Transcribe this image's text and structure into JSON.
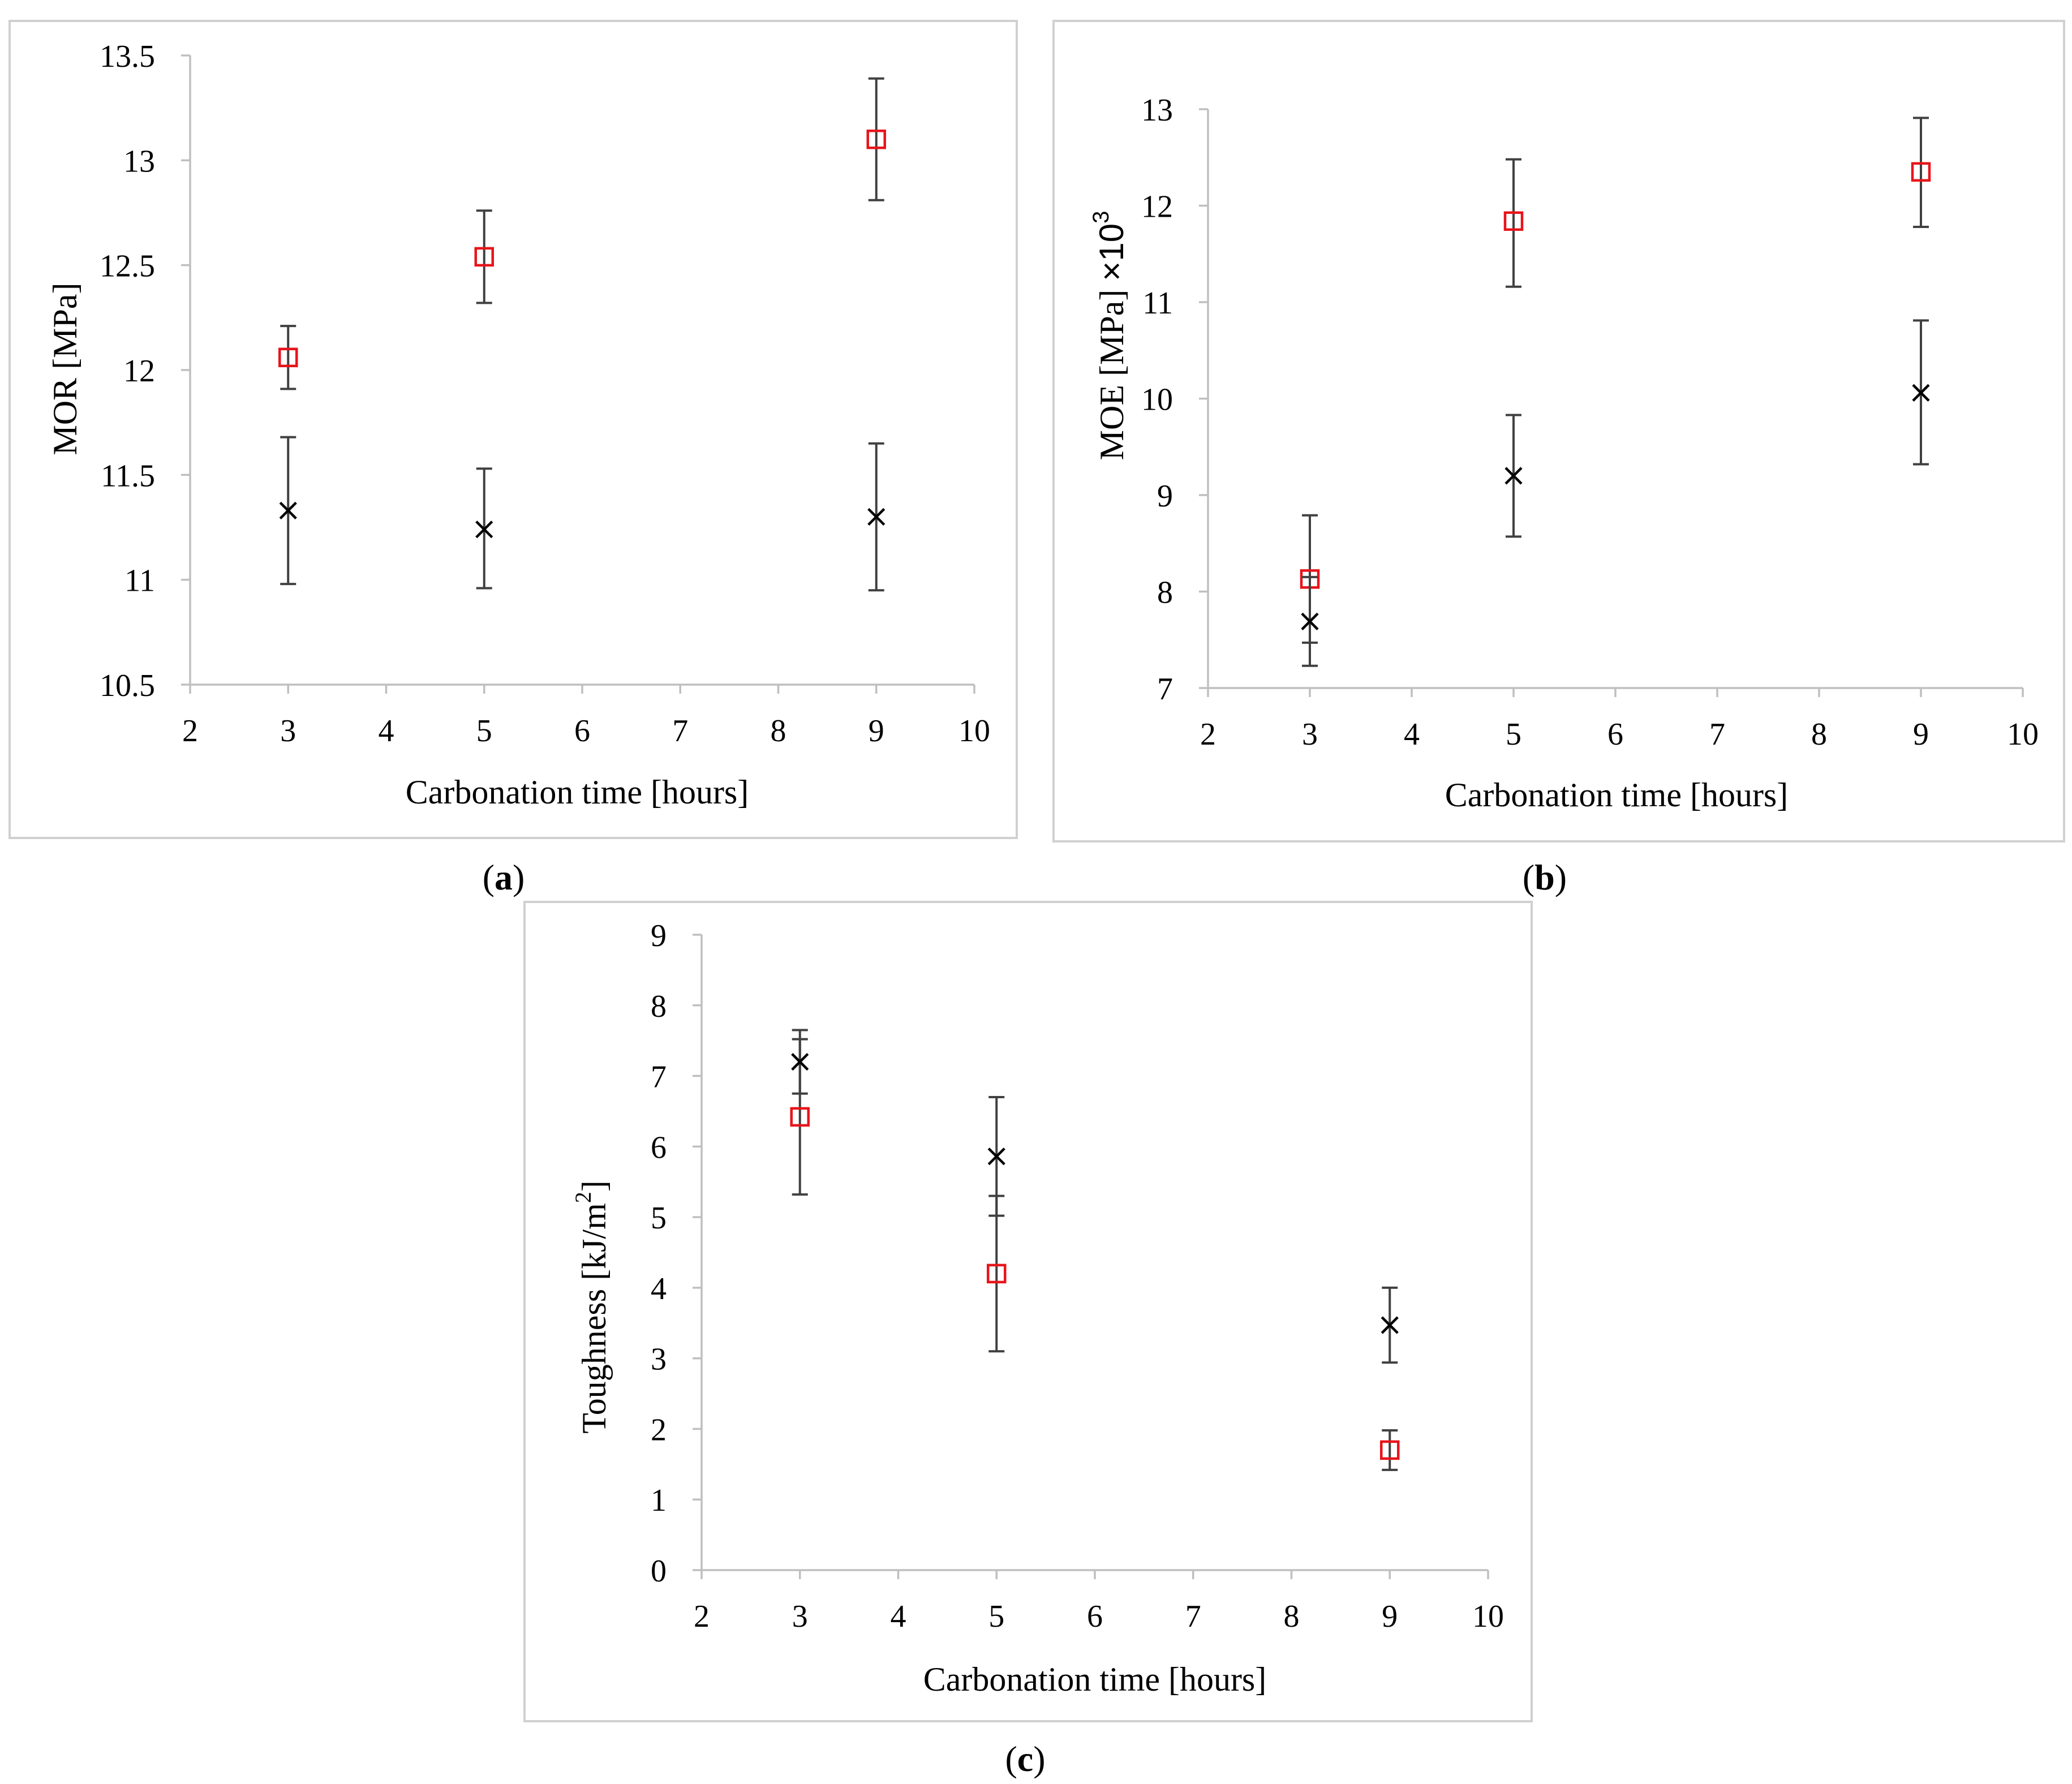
{
  "colors": {
    "series_carbonated": "#e8141a",
    "series_reference": "#000000",
    "errorbar": "#404040",
    "axis": "#bfbfbf"
  },
  "panels": {
    "a": {
      "tag": "a",
      "open": "(",
      "close": ")"
    },
    "b": {
      "tag": "b",
      "open": "(",
      "close": ")"
    },
    "c": {
      "tag": "c",
      "open": "(",
      "close": ")"
    }
  },
  "chart_data": [
    {
      "id": "a",
      "type": "scatter",
      "title": "",
      "xlabel": "Carbonation time [hours]",
      "ylabel": "MOR [MPa]",
      "xlim": [
        2,
        10
      ],
      "ylim": [
        10.5,
        13.5
      ],
      "x_ticks": [
        "2",
        "3",
        "4",
        "5",
        "6",
        "7",
        "8",
        "9",
        "10"
      ],
      "y_ticks": [
        "10.5",
        "11",
        "11.5",
        "12",
        "12.5",
        "13",
        "13.5"
      ],
      "series": [
        {
          "name": "red-square",
          "marker": "square",
          "x": [
            3,
            5,
            9
          ],
          "y": [
            12.06,
            12.54,
            13.1
          ],
          "err_low": [
            11.91,
            12.32,
            12.81
          ],
          "err_high": [
            12.21,
            12.76,
            13.39
          ]
        },
        {
          "name": "black-x",
          "marker": "x",
          "x": [
            3,
            5,
            9
          ],
          "y": [
            11.33,
            11.24,
            11.3
          ],
          "err_low": [
            10.98,
            10.96,
            10.95
          ],
          "err_high": [
            11.68,
            11.53,
            11.65
          ]
        }
      ]
    },
    {
      "id": "b",
      "type": "scatter",
      "title": "",
      "xlabel": "Carbonation time [hours]",
      "ylabel_main": "MOE [MPa] ",
      "ylabel_mult": "×10",
      "ylabel_exp": "3",
      "xlim": [
        2,
        10
      ],
      "ylim": [
        7,
        13
      ],
      "x_ticks": [
        "2",
        "3",
        "4",
        "5",
        "6",
        "7",
        "8",
        "9",
        "10"
      ],
      "y_ticks": [
        "7",
        "8",
        "9",
        "10",
        "11",
        "12",
        "13"
      ],
      "series": [
        {
          "name": "red-square",
          "marker": "square",
          "x": [
            3,
            5,
            9
          ],
          "y": [
            8.13,
            11.84,
            12.35
          ],
          "err_low": [
            7.47,
            11.16,
            11.78
          ],
          "err_high": [
            8.79,
            12.48,
            12.91
          ]
        },
        {
          "name": "black-x",
          "marker": "x",
          "x": [
            3,
            5,
            9
          ],
          "y": [
            7.69,
            9.2,
            10.06
          ],
          "err_low": [
            7.23,
            8.57,
            9.32
          ],
          "err_high": [
            8.15,
            9.83,
            10.81
          ]
        }
      ]
    },
    {
      "id": "c",
      "type": "scatter",
      "title": "",
      "xlabel": "Carbonation time [hours]",
      "ylabel_main": "Toughness [kJ/m",
      "ylabel_exp": "2",
      "ylabel_close": "]",
      "xlim": [
        2,
        10
      ],
      "ylim": [
        0,
        9
      ],
      "x_ticks": [
        "2",
        "3",
        "4",
        "5",
        "6",
        "7",
        "8",
        "9",
        "10"
      ],
      "y_ticks": [
        "0",
        "1",
        "2",
        "3",
        "4",
        "5",
        "6",
        "7",
        "8",
        "9"
      ],
      "series": [
        {
          "name": "red-square",
          "marker": "square",
          "x": [
            3,
            5,
            9
          ],
          "y": [
            6.42,
            4.2,
            1.7
          ],
          "err_low": [
            5.32,
            3.1,
            1.42
          ],
          "err_high": [
            7.52,
            5.3,
            1.98
          ]
        },
        {
          "name": "black-x",
          "marker": "x",
          "x": [
            3,
            5,
            9
          ],
          "y": [
            7.2,
            5.86,
            3.47
          ],
          "err_low": [
            6.75,
            5.02,
            2.94
          ],
          "err_high": [
            7.65,
            6.7,
            4.0
          ]
        }
      ]
    }
  ]
}
